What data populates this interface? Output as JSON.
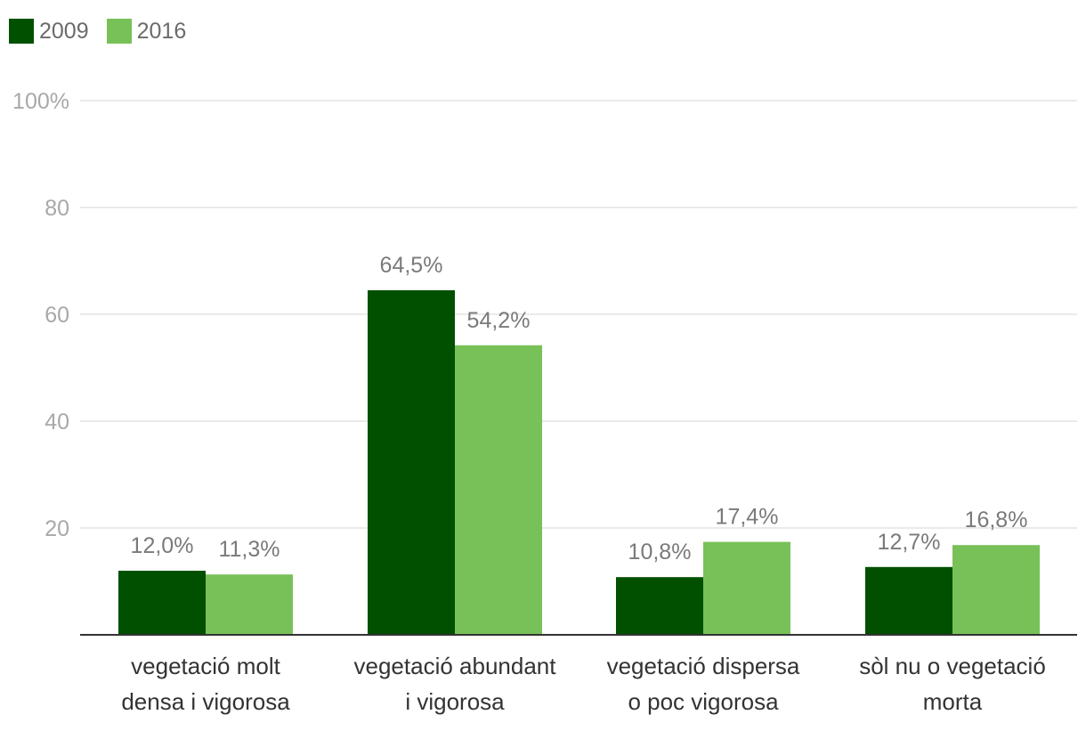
{
  "chart_data": {
    "type": "bar",
    "title": "",
    "xlabel": "",
    "ylabel": "",
    "ylim": [
      0,
      100
    ],
    "yticks": [
      "20",
      "40",
      "60",
      "80",
      "100%"
    ],
    "ytick_values": [
      20,
      40,
      60,
      80,
      100
    ],
    "grid": true,
    "legend_position": "top-left",
    "categories": [
      [
        "vegetació molt",
        "densa i vigorosa"
      ],
      [
        "vegetació abundant",
        "i vigorosa"
      ],
      [
        "vegetació dispersa",
        "o poc vigorosa"
      ],
      [
        "sòl nu o vegetació",
        "morta"
      ]
    ],
    "series": [
      {
        "name": "2009",
        "color": "#005000",
        "values": [
          12.0,
          64.5,
          10.8,
          12.7
        ],
        "labels": [
          "12,0%",
          "64,5%",
          "10,8%",
          "12,7%"
        ]
      },
      {
        "name": "2016",
        "color": "#78c158",
        "values": [
          11.3,
          54.2,
          17.4,
          16.8
        ],
        "labels": [
          "11,3%",
          "54,2%",
          "17,4%",
          "16,8%"
        ]
      }
    ]
  },
  "colors": {
    "grid": "#e3e3e3",
    "axis": "#333333",
    "tick_text": "#a8a8a8",
    "data_label": "#7a7a7a",
    "legend_text": "#6b6b6b"
  }
}
